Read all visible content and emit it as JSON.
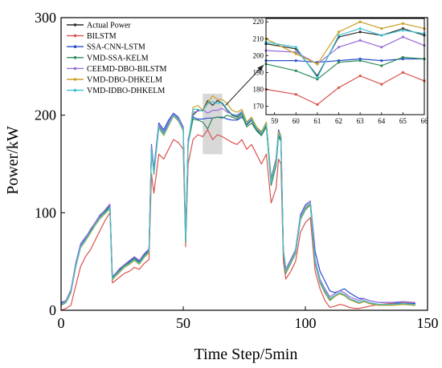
{
  "chart_data": [
    {
      "type": "line",
      "title": "",
      "xlabel": "Time Step/5min",
      "ylabel": "Power/kW",
      "xlim": [
        0,
        150
      ],
      "ylim": [
        0,
        300
      ],
      "x_ticks": [
        "0",
        "50",
        "100",
        "150"
      ],
      "y_ticks": [
        "0",
        "100",
        "200",
        "300"
      ],
      "grid": false,
      "legend_position": "top-left",
      "highlight_x_range": [
        58,
        66
      ],
      "x": [
        0,
        2,
        4,
        6,
        8,
        10,
        12,
        14,
        16,
        18,
        20,
        21,
        22,
        24,
        26,
        28,
        30,
        32,
        34,
        36,
        37,
        38,
        40,
        42,
        44,
        46,
        48,
        50,
        51,
        52,
        54,
        56,
        58,
        60,
        62,
        64,
        66,
        68,
        70,
        72,
        74,
        76,
        78,
        80,
        82,
        84,
        86,
        88,
        89,
        90,
        91,
        92,
        94,
        96,
        98,
        100,
        102,
        104,
        106,
        108,
        110,
        112,
        114,
        116,
        118,
        120,
        122,
        124,
        126,
        128,
        130,
        135,
        140,
        145
      ],
      "series": [
        {
          "name": "Actual Power",
          "color": "#2f2f2f",
          "values": [
            5,
            8,
            18,
            45,
            65,
            72,
            80,
            88,
            95,
            100,
            105,
            32,
            35,
            40,
            45,
            48,
            52,
            48,
            55,
            60,
            165,
            140,
            188,
            180,
            190,
            200,
            195,
            185,
            70,
            170,
            200,
            205,
            205,
            215,
            210,
            215,
            212,
            205,
            200,
            198,
            202,
            190,
            195,
            185,
            180,
            190,
            130,
            150,
            180,
            175,
            60,
            40,
            50,
            60,
            95,
            105,
            110,
            50,
            30,
            20,
            12,
            15,
            18,
            16,
            12,
            10,
            8,
            10,
            8,
            7,
            6,
            6,
            7,
            6
          ]
        },
        {
          "name": "BILSTM",
          "color": "#d9534f",
          "values": [
            0,
            2,
            5,
            25,
            45,
            55,
            62,
            72,
            82,
            92,
            100,
            28,
            30,
            34,
            38,
            40,
            44,
            42,
            48,
            52,
            140,
            120,
            160,
            155,
            165,
            175,
            172,
            165,
            65,
            150,
            175,
            180,
            178,
            185,
            175,
            180,
            178,
            175,
            172,
            170,
            175,
            165,
            170,
            160,
            150,
            160,
            110,
            125,
            155,
            150,
            50,
            32,
            40,
            50,
            80,
            90,
            95,
            40,
            22,
            10,
            3,
            4,
            6,
            5,
            3,
            2,
            2,
            3,
            4,
            5,
            6,
            7,
            8,
            8
          ]
        },
        {
          "name": "SSA-CNN-LSTM",
          "color": "#2b4fcf",
          "values": [
            8,
            10,
            20,
            48,
            68,
            75,
            82,
            90,
            98,
            102,
            108,
            34,
            36,
            42,
            46,
            50,
            54,
            50,
            57,
            62,
            170,
            145,
            192,
            185,
            195,
            202,
            198,
            188,
            72,
            175,
            198,
            196,
            196,
            197,
            197,
            198,
            198,
            196,
            195,
            195,
            198,
            192,
            195,
            188,
            183,
            192,
            135,
            155,
            185,
            178,
            62,
            42,
            52,
            62,
            98,
            108,
            112,
            60,
            40,
            30,
            20,
            18,
            20,
            22,
            18,
            15,
            12,
            12,
            10,
            9,
            8,
            8,
            7,
            7
          ]
        },
        {
          "name": "VMD-SSA-KELM",
          "color": "#2e8b57",
          "values": [
            6,
            9,
            19,
            46,
            66,
            73,
            81,
            89,
            96,
            101,
            106,
            33,
            36,
            41,
            46,
            49,
            53,
            49,
            56,
            61,
            166,
            141,
            189,
            181,
            191,
            199,
            196,
            186,
            71,
            171,
            196,
            195,
            193,
            186,
            197,
            198,
            197,
            200,
            198,
            196,
            200,
            188,
            192,
            184,
            179,
            188,
            128,
            148,
            178,
            173,
            58,
            38,
            48,
            58,
            93,
            103,
            108,
            48,
            28,
            18,
            10,
            14,
            17,
            15,
            11,
            9,
            7,
            9,
            7,
            6,
            5,
            5,
            6,
            5
          ]
        },
        {
          "name": "CEEMD-DBO-BILSTM",
          "color": "#9b6fd6",
          "values": [
            7,
            10,
            21,
            47,
            67,
            74,
            83,
            90,
            97,
            103,
            109,
            35,
            37,
            43,
            47,
            51,
            55,
            51,
            58,
            63,
            168,
            143,
            190,
            183,
            193,
            201,
            197,
            187,
            73,
            173,
            203,
            204,
            206,
            202,
            205,
            205,
            207,
            203,
            201,
            200,
            204,
            192,
            197,
            187,
            182,
            192,
            132,
            152,
            182,
            177,
            62,
            42,
            52,
            62,
            97,
            107,
            112,
            52,
            32,
            22,
            14,
            17,
            20,
            18,
            14,
            12,
            10,
            12,
            10,
            9,
            8,
            8,
            9,
            8
          ]
        },
        {
          "name": "VMD-DBO-DHKELM",
          "color": "#c9a227",
          "values": [
            5,
            9,
            18,
            44,
            64,
            71,
            79,
            87,
            94,
            99,
            104,
            31,
            34,
            39,
            44,
            47,
            51,
            47,
            54,
            59,
            164,
            139,
            187,
            179,
            189,
            199,
            194,
            184,
            69,
            169,
            208,
            210,
            205,
            213,
            220,
            216,
            216,
            212,
            205,
            203,
            206,
            193,
            198,
            188,
            183,
            193,
            133,
            153,
            183,
            178,
            59,
            39,
            49,
            59,
            94,
            104,
            109,
            49,
            29,
            19,
            11,
            14,
            17,
            15,
            11,
            9,
            7,
            9,
            7,
            6,
            5,
            5,
            6,
            5
          ]
        },
        {
          "name": "VMD-IDBO-DHKELM",
          "color": "#3ec1d3",
          "values": [
            6,
            8,
            19,
            45,
            65,
            72,
            80,
            88,
            95,
            100,
            105,
            32,
            35,
            40,
            45,
            48,
            52,
            48,
            55,
            60,
            165,
            140,
            188,
            180,
            190,
            200,
            195,
            185,
            70,
            170,
            206,
            206,
            204,
            212,
            214,
            212,
            213,
            206,
            201,
            199,
            203,
            191,
            196,
            186,
            181,
            191,
            131,
            151,
            181,
            176,
            60,
            40,
            50,
            60,
            95,
            105,
            110,
            50,
            30,
            20,
            12,
            15,
            18,
            16,
            12,
            10,
            8,
            10,
            8,
            7,
            6,
            6,
            7,
            6
          ]
        }
      ]
    },
    {
      "type": "line",
      "title": "",
      "xlabel": "",
      "ylabel": "",
      "xlim": [
        58.6,
        66
      ],
      "ylim": [
        165,
        222
      ],
      "x_ticks": [
        "59",
        "60",
        "61",
        "62",
        "63",
        "64",
        "65",
        "66"
      ],
      "y_ticks": [
        "170",
        "180",
        "190",
        "200",
        "210",
        "220"
      ],
      "grid": false,
      "x": [
        58.6,
        60,
        61,
        62,
        63,
        64,
        65,
        66
      ],
      "series": [
        {
          "name": "Actual Power",
          "color": "#2f2f2f",
          "values": [
            207,
            204,
            188,
            211,
            214,
            212,
            216,
            212
          ]
        },
        {
          "name": "BILSTM",
          "color": "#d9534f",
          "values": [
            180,
            177,
            171,
            181,
            188,
            183,
            190,
            185
          ]
        },
        {
          "name": "SSA-CNN-LSTM",
          "color": "#2b4fcf",
          "values": [
            197,
            197,
            196,
            197,
            198,
            197,
            198,
            198
          ]
        },
        {
          "name": "VMD-SSA-KELM",
          "color": "#2e8b57",
          "values": [
            195,
            191,
            186,
            196,
            197,
            194,
            199,
            198
          ]
        },
        {
          "name": "CEEMD-DBO-BILSTM",
          "color": "#9b6fd6",
          "values": [
            203,
            202,
            195,
            205,
            209,
            205,
            211,
            206
          ]
        },
        {
          "name": "VMD-DBO-DHKELM",
          "color": "#c9a227",
          "values": [
            210,
            201,
            195,
            214,
            220,
            216,
            219,
            216
          ]
        },
        {
          "name": "VMD-IDBO-DHKELM",
          "color": "#3ec1d3",
          "values": [
            208,
            205,
            187,
            212,
            216,
            212,
            215,
            213
          ]
        }
      ]
    }
  ]
}
